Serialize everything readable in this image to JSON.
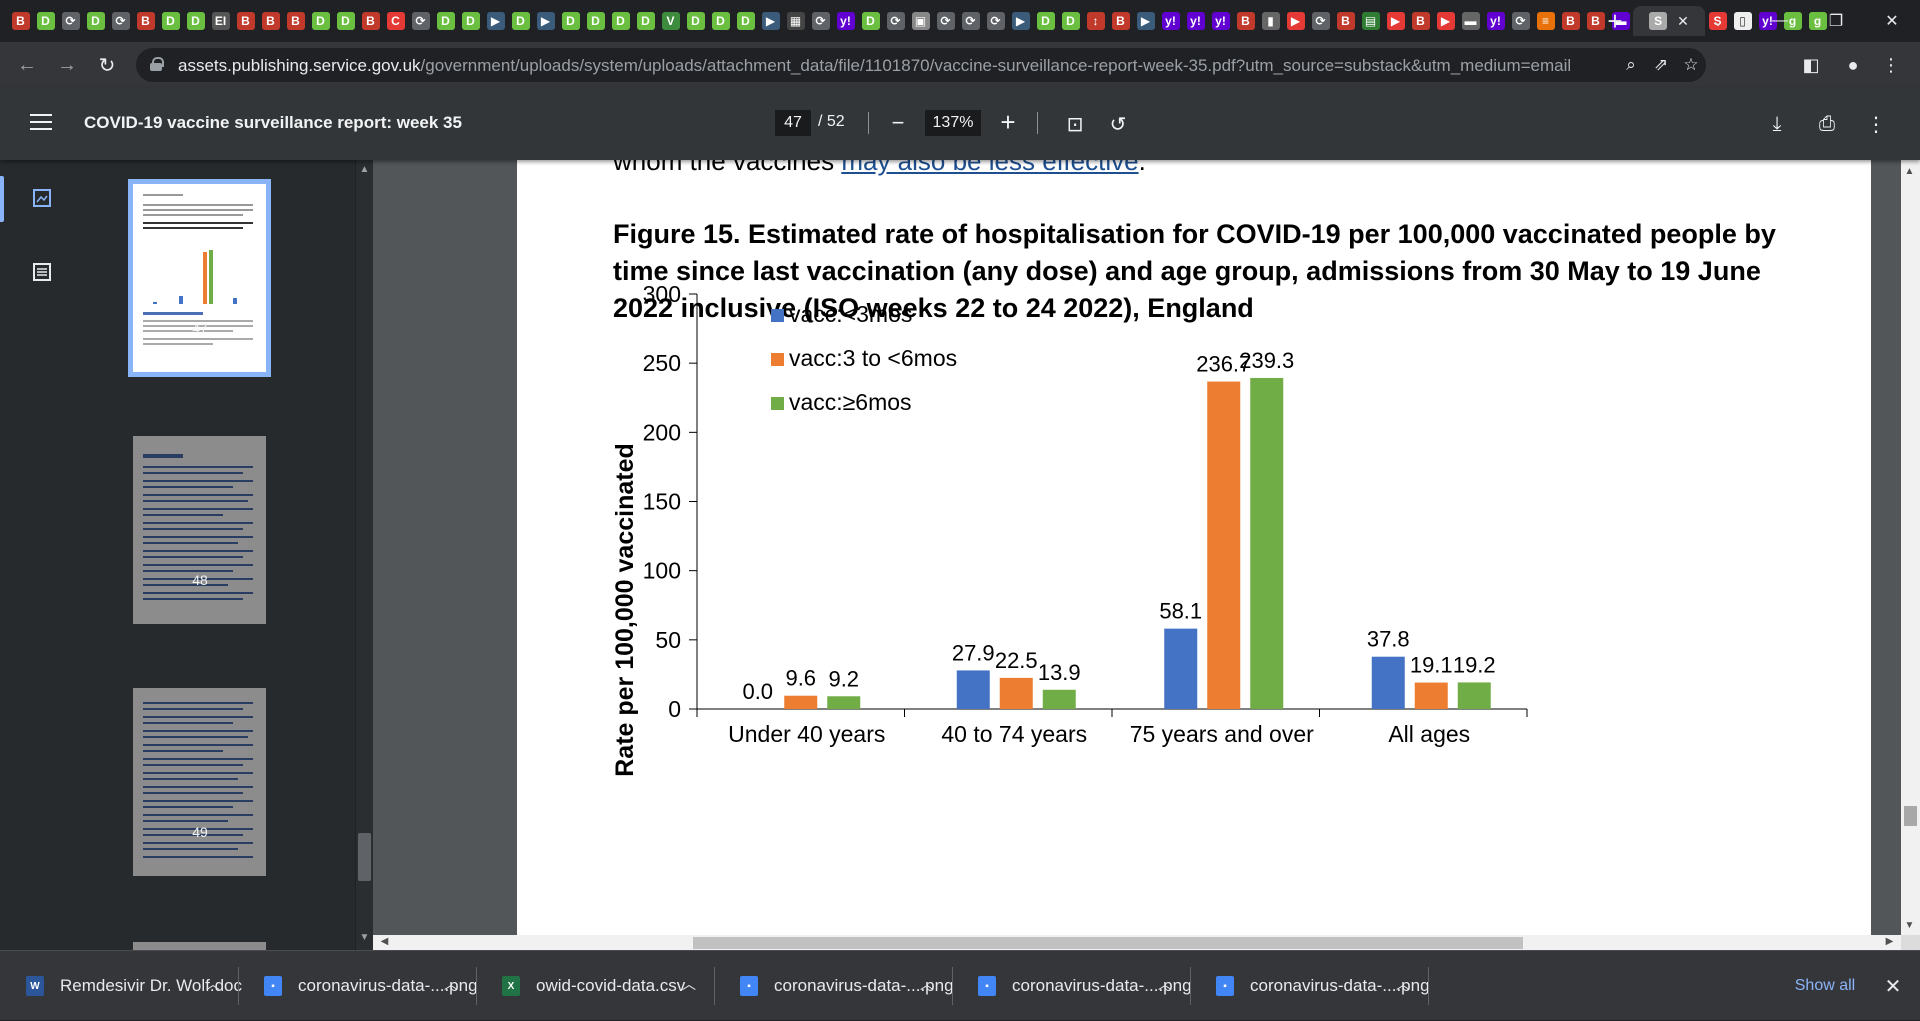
{
  "browser": {
    "tab_favicons": [
      {
        "icon": "B",
        "bg": "#c0392b"
      },
      {
        "icon": "D",
        "bg": "#6abf40"
      },
      {
        "icon": "⟳",
        "bg": "#5f6368"
      },
      {
        "icon": "D",
        "bg": "#6abf40"
      },
      {
        "icon": "⟳",
        "bg": "#5f6368"
      },
      {
        "icon": "B",
        "bg": "#c0392b"
      },
      {
        "icon": "D",
        "bg": "#6abf40"
      },
      {
        "icon": "D",
        "bg": "#6abf40"
      },
      {
        "icon": "EI",
        "bg": "#555"
      },
      {
        "icon": "B",
        "bg": "#c0392b"
      },
      {
        "icon": "B",
        "bg": "#c0392b"
      },
      {
        "icon": "B",
        "bg": "#c0392b"
      },
      {
        "icon": "D",
        "bg": "#6abf40"
      },
      {
        "icon": "D",
        "bg": "#6abf40"
      },
      {
        "icon": "B",
        "bg": "#c0392b"
      },
      {
        "icon": "C",
        "bg": "#e53935"
      },
      {
        "icon": "⟳",
        "bg": "#5f6368"
      },
      {
        "icon": "D",
        "bg": "#6abf40"
      },
      {
        "icon": "D",
        "bg": "#6abf40"
      },
      {
        "icon": "▶",
        "bg": "#3b5b7a"
      },
      {
        "icon": "D",
        "bg": "#6abf40"
      },
      {
        "icon": "▶",
        "bg": "#3b5b7a"
      },
      {
        "icon": "D",
        "bg": "#6abf40"
      },
      {
        "icon": "D",
        "bg": "#6abf40"
      },
      {
        "icon": "D",
        "bg": "#6abf40"
      },
      {
        "icon": "D",
        "bg": "#6abf40"
      },
      {
        "icon": "V",
        "bg": "#3d8b3d"
      },
      {
        "icon": "D",
        "bg": "#6abf40"
      },
      {
        "icon": "D",
        "bg": "#6abf40"
      },
      {
        "icon": "D",
        "bg": "#6abf40"
      },
      {
        "icon": "▶",
        "bg": "#3b5b7a"
      },
      {
        "icon": "▦",
        "bg": "#444"
      },
      {
        "icon": "⟳",
        "bg": "#5f6368"
      },
      {
        "icon": "y!",
        "bg": "#6001d2"
      },
      {
        "icon": "D",
        "bg": "#6abf40"
      },
      {
        "icon": "⟳",
        "bg": "#5f6368"
      },
      {
        "icon": "▣",
        "bg": "#888"
      },
      {
        "icon": "⟳",
        "bg": "#5f6368"
      },
      {
        "icon": "⟳",
        "bg": "#5f6368"
      },
      {
        "icon": "⟳",
        "bg": "#5f6368"
      },
      {
        "icon": "▶",
        "bg": "#3b5b7a"
      },
      {
        "icon": "D",
        "bg": "#6abf40"
      },
      {
        "icon": "D",
        "bg": "#6abf40"
      },
      {
        "icon": "↕",
        "bg": "#c0392b"
      },
      {
        "icon": "B",
        "bg": "#c0392b"
      },
      {
        "icon": "▶",
        "bg": "#3b5b7a"
      },
      {
        "icon": "y!",
        "bg": "#6001d2"
      },
      {
        "icon": "y!",
        "bg": "#6001d2"
      },
      {
        "icon": "y!",
        "bg": "#6001d2"
      },
      {
        "icon": "B",
        "bg": "#c0392b"
      },
      {
        "icon": "▮",
        "bg": "#666"
      },
      {
        "icon": "▶",
        "bg": "#e53935"
      },
      {
        "icon": "⟳",
        "bg": "#5f6368"
      },
      {
        "icon": "B",
        "bg": "#c0392b"
      },
      {
        "icon": "▤",
        "bg": "#2e7d32"
      },
      {
        "icon": "▶",
        "bg": "#e53935"
      },
      {
        "icon": "B",
        "bg": "#c0392b"
      },
      {
        "icon": "▶",
        "bg": "#e53935"
      },
      {
        "icon": "▬",
        "bg": "#666"
      },
      {
        "icon": "y!",
        "bg": "#6001d2"
      },
      {
        "icon": "⟳",
        "bg": "#5f6368"
      },
      {
        "icon": "≡",
        "bg": "#e8710a"
      },
      {
        "icon": "B",
        "bg": "#c0392b"
      },
      {
        "icon": "B",
        "bg": "#c0392b"
      },
      {
        "icon": "▬",
        "bg": "#6001d2"
      }
    ],
    "active_tab_favicon": "S",
    "trailing_favicons": [
      {
        "icon": "S",
        "bg": "#e53935"
      },
      {
        "icon": "▯",
        "bg": "#eee"
      },
      {
        "icon": "y!",
        "bg": "#6001d2"
      },
      {
        "icon": "g",
        "bg": "#6abf40"
      },
      {
        "icon": "g",
        "bg": "#6abf40"
      }
    ],
    "url_host": "assets.publishing.service.gov.uk",
    "url_path": "/government/uploads/system/uploads/attachment_data/file/1101870/vaccine-surveillance-report-week-35.pdf?utm_source=substack&utm_medium=email"
  },
  "pdf": {
    "title": "COVID-19 vaccine surveillance report: week 35",
    "current_page": "47",
    "total_pages": "/ 52",
    "zoom": "137%",
    "thumbnails": [
      {
        "page": "47",
        "selected": true
      },
      {
        "page": "48",
        "selected": false
      },
      {
        "page": "49",
        "selected": false
      }
    ],
    "prev_text": "whom the vaccines ",
    "prev_link": "may also be less effective",
    "prev_end": ".",
    "figure_title": "Figure 15. Estimated rate of hospitalisation for COVID-19 per 100,000 vaccinated people by time since last vaccination (any dose) and age group, admissions from 30 May to 19 June 2022 inclusive (ISO weeks 22 to 24 2022), England"
  },
  "chart_data": {
    "type": "bar",
    "title": "",
    "xlabel": "",
    "ylabel": "Rate per 100,000 vaccinated",
    "ylim": [
      0,
      300
    ],
    "yticks": [
      0,
      50,
      100,
      150,
      200,
      250,
      300
    ],
    "categories": [
      "Under 40 years",
      "40 to 74 years",
      "75 years and over",
      "All ages"
    ],
    "series": [
      {
        "name": "vacc:<3mos",
        "color": "#4472c4",
        "values": [
          0.0,
          27.9,
          58.1,
          37.8
        ],
        "labels": [
          "0.0",
          "27.9",
          "58.1",
          "37.8"
        ]
      },
      {
        "name": "vacc:3 to <6mos",
        "color": "#ed7d31",
        "values": [
          9.6,
          22.5,
          236.7,
          19.1
        ],
        "labels": [
          "9.6",
          "22.5",
          "236.7",
          "19.1"
        ]
      },
      {
        "name": "vacc:≥6mos",
        "color": "#70ad47",
        "values": [
          9.2,
          13.9,
          239.3,
          19.2
        ],
        "labels": [
          "9.2",
          "13.9",
          "239.3",
          "19.2"
        ]
      }
    ],
    "legend": "top-left",
    "grid": false
  },
  "downloads": {
    "items": [
      {
        "name": "Remdesivir Dr. Wolf.doc",
        "icon": "word-icon",
        "color": "#2b579a",
        "glyph": "W"
      },
      {
        "name": "coronavirus-data-....png",
        "icon": "image-file-icon",
        "color": "#4285f4",
        "glyph": "▪"
      },
      {
        "name": "owid-covid-data.csv",
        "icon": "excel-icon",
        "color": "#217346",
        "glyph": "X"
      },
      {
        "name": "coronavirus-data-....png",
        "icon": "image-file-icon",
        "color": "#4285f4",
        "glyph": "▪"
      },
      {
        "name": "coronavirus-data-....png",
        "icon": "image-file-icon",
        "color": "#4285f4",
        "glyph": "▪"
      },
      {
        "name": "coronavirus-data-....png",
        "icon": "image-file-icon",
        "color": "#4285f4",
        "glyph": "▪"
      }
    ],
    "show_all": "Show all"
  }
}
